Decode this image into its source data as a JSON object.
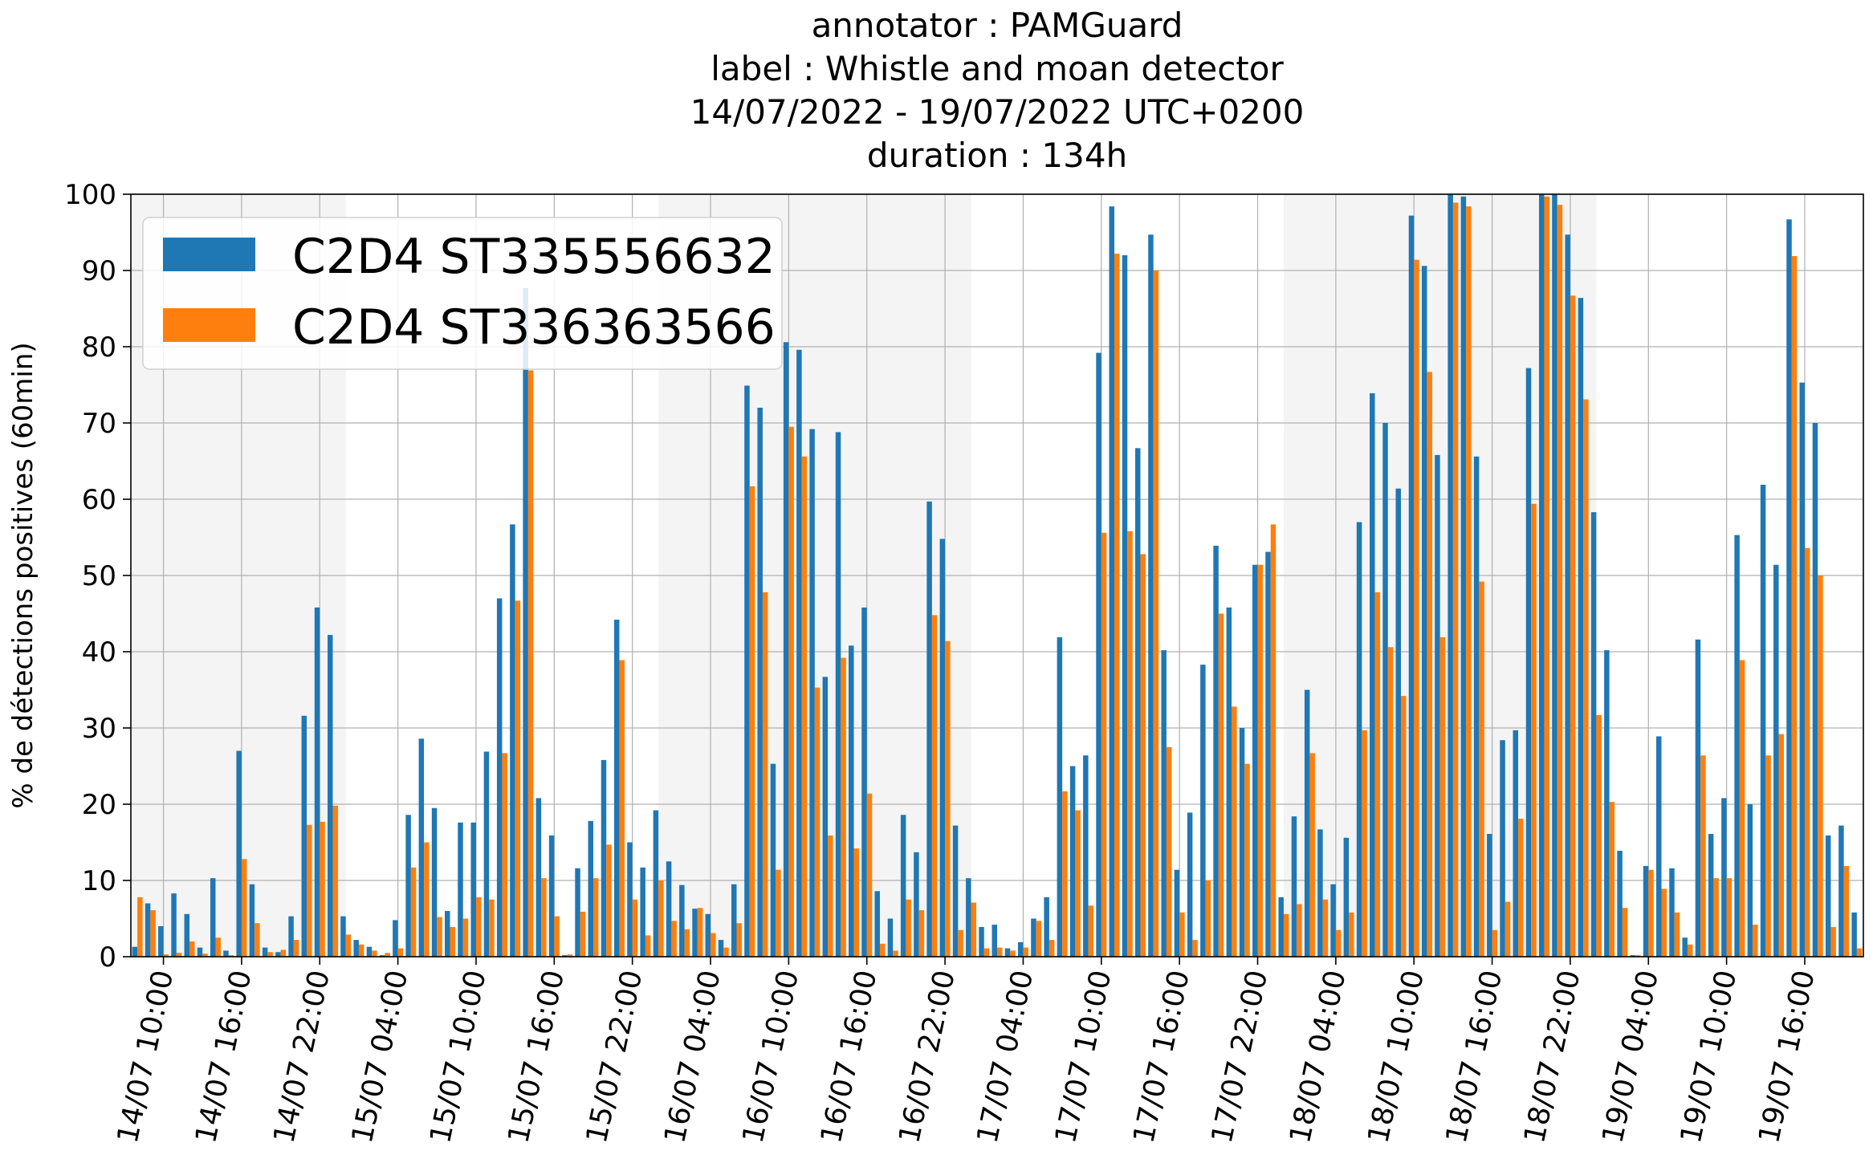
{
  "chart_data": {
    "type": "bar",
    "title_lines": [
      "annotator : PAMGuard",
      "label : Whistle and moan detector",
      "14/07/2022 - 19/07/2022 UTC+0200",
      "duration : 134h"
    ],
    "ylabel": "% de détections positives (60min)",
    "ylim": [
      0,
      100
    ],
    "yticks": [
      "0",
      "10",
      "20",
      "30",
      "40",
      "50",
      "60",
      "70",
      "80",
      "90",
      "100"
    ],
    "grid": true,
    "legend_position": "top-left",
    "xticks": [
      {
        "label": "14/07 10:00",
        "hour": 10
      },
      {
        "label": "14/07 16:00",
        "hour": 16
      },
      {
        "label": "14/07 22:00",
        "hour": 22
      },
      {
        "label": "15/07 04:00",
        "hour": 28
      },
      {
        "label": "15/07 10:00",
        "hour": 34
      },
      {
        "label": "15/07 16:00",
        "hour": 40
      },
      {
        "label": "15/07 22:00",
        "hour": 46
      },
      {
        "label": "16/07 04:00",
        "hour": 52
      },
      {
        "label": "16/07 10:00",
        "hour": 58
      },
      {
        "label": "16/07 16:00",
        "hour": 64
      },
      {
        "label": "16/07 22:00",
        "hour": 70
      },
      {
        "label": "17/07 04:00",
        "hour": 76
      },
      {
        "label": "17/07 10:00",
        "hour": 82
      },
      {
        "label": "17/07 16:00",
        "hour": 88
      },
      {
        "label": "17/07 22:00",
        "hour": 94
      },
      {
        "label": "18/07 04:00",
        "hour": 100
      },
      {
        "label": "18/07 10:00",
        "hour": 106
      },
      {
        "label": "18/07 16:00",
        "hour": 112
      },
      {
        "label": "18/07 22:00",
        "hour": 118
      },
      {
        "label": "19/07 04:00",
        "hour": 124
      },
      {
        "label": "19/07 10:00",
        "hour": 130
      },
      {
        "label": "19/07 16:00",
        "hour": 136
      }
    ],
    "night_bands": [
      [
        7.5,
        24
      ],
      [
        48,
        72
      ],
      [
        96,
        120
      ]
    ],
    "x_start_hour": 7.5,
    "series": [
      {
        "name": "C2D4 ST335556632",
        "color": "#1f77b4",
        "values": [
          1.3,
          7,
          4,
          8.3,
          5.6,
          1.2,
          10.3,
          0.8,
          27,
          9.5,
          1.2,
          0.6,
          5.3,
          31.6,
          45.8,
          42.2,
          5.3,
          2.2,
          1.3,
          0.2,
          4.8,
          18.6,
          28.6,
          19.5,
          6,
          17.6,
          17.6,
          26.9,
          47,
          56.7,
          87.7,
          20.8,
          15.9,
          0.2,
          11.6,
          17.8,
          25.8,
          44.2,
          15,
          11.7,
          19.2,
          12.5,
          9.4,
          6.3,
          5.6,
          2.2,
          9.5,
          74.9,
          72,
          25.3,
          80.6,
          79.6,
          69.2,
          36.7,
          68.8,
          40.8,
          45.8,
          8.6,
          5,
          18.6,
          13.7,
          59.7,
          54.8,
          17.2,
          10.3,
          3.9,
          4.2,
          1.1,
          1.9,
          5,
          7.8,
          41.9,
          25,
          26.4,
          79.2,
          98.4,
          92,
          66.7,
          94.7,
          40.2,
          11.4,
          18.9,
          38.3,
          53.9,
          45.8,
          30,
          51.4,
          53.1,
          7.8,
          18.4,
          35,
          16.7,
          9.5,
          15.6,
          57,
          73.9,
          70,
          61.4,
          97.2,
          90.6,
          65.8,
          100,
          99.7,
          65.6,
          16.1,
          28.4,
          29.7,
          77.2,
          100,
          100,
          94.7,
          86.4,
          58.3,
          40.2,
          13.9,
          0.2,
          11.9,
          28.9,
          11.6,
          2.5,
          41.6,
          16.1,
          20.8,
          55.3,
          20,
          61.9,
          51.4,
          96.7,
          75.3,
          70,
          15.9,
          17.2,
          5.8
        ],
        "partial_values_note": ""
      },
      {
        "name": "C2D4 ST336363566",
        "color": "#ff7f0e",
        "values": [
          7.8,
          6.1,
          0.3,
          0.5,
          2,
          0.4,
          2.5,
          0.2,
          12.8,
          4.4,
          0.6,
          0.9,
          2.2,
          17.3,
          17.7,
          19.8,
          2.9,
          1.6,
          0.8,
          0.5,
          1.1,
          11.7,
          15,
          5.2,
          3.9,
          5,
          7.8,
          7.5,
          26.7,
          46.7,
          76.9,
          10.3,
          5.3,
          0.3,
          5.9,
          10.3,
          14.7,
          38.9,
          7.5,
          2.8,
          10,
          4.7,
          3.6,
          6.4,
          3.1,
          1.2,
          4.4,
          61.7,
          47.8,
          11.4,
          69.5,
          65.6,
          35.3,
          15.9,
          39.2,
          14.2,
          21.4,
          1.7,
          0.8,
          7.5,
          6.1,
          44.8,
          41.4,
          3.5,
          7.1,
          1.1,
          1.2,
          0.8,
          1.2,
          4.7,
          2.2,
          21.7,
          19.2,
          6.7,
          55.6,
          92.2,
          55.8,
          52.8,
          90,
          27.5,
          5.8,
          2.2,
          10,
          45,
          32.8,
          25.3,
          51.4,
          56.7,
          5.6,
          6.9,
          26.7,
          7.5,
          3.5,
          5.8,
          29.7,
          47.8,
          40.6,
          34.2,
          91.4,
          76.7,
          41.9,
          98.9,
          98.4,
          49.2,
          3.5,
          7.2,
          18.1,
          59.4,
          99.7,
          98.6,
          86.7,
          73.1,
          31.7,
          20.3,
          6.4,
          0.2,
          11.4,
          8.9,
          5.8,
          1.6,
          26.4,
          10.3,
          10.3,
          38.9,
          4.2,
          26.4,
          29.2,
          91.9,
          53.6,
          50,
          3.9,
          11.9,
          1.1
        ]
      }
    ]
  }
}
